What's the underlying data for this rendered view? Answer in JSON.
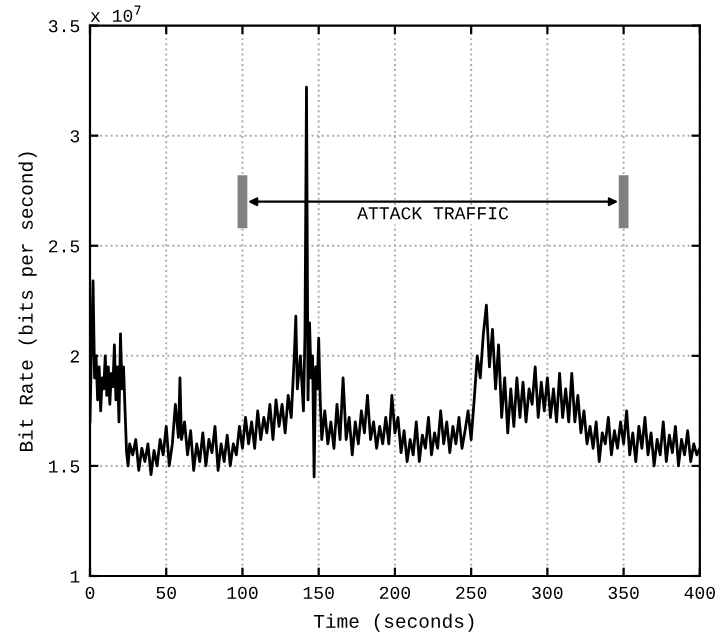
{
  "chart_data": {
    "type": "line",
    "xlabel": "Time (seconds)",
    "ylabel": "Bit Rate (bits per second)",
    "annotations": [
      "x 10$^{7}$",
      "ATTACK TRAFFIC"
    ],
    "ref_lines": [
      {
        "axis": "x",
        "value": 100,
        "color": "#808080"
      },
      {
        "axis": "x",
        "value": 350,
        "color": "#808080"
      }
    ],
    "x": [
      0,
      1,
      2,
      3,
      4,
      5,
      6,
      7,
      8,
      9,
      10,
      11,
      12,
      13,
      14,
      15,
      16,
      17,
      18,
      19,
      20,
      21,
      22,
      23,
      24,
      25,
      26,
      28,
      30,
      32,
      34,
      36,
      38,
      40,
      42,
      44,
      46,
      48,
      50,
      52,
      54,
      56,
      58,
      59,
      60,
      62,
      64,
      66,
      68,
      70,
      72,
      74,
      76,
      78,
      80,
      82,
      84,
      86,
      88,
      90,
      92,
      94,
      96,
      98,
      100,
      102,
      104,
      106,
      108,
      110,
      112,
      114,
      116,
      118,
      120,
      122,
      124,
      126,
      128,
      130,
      132,
      134,
      135,
      136,
      138,
      140,
      141,
      142,
      143,
      144,
      145,
      146,
      147,
      148,
      149,
      150,
      151,
      152,
      154,
      156,
      158,
      160,
      162,
      164,
      166,
      168,
      170,
      172,
      174,
      176,
      178,
      180,
      182,
      184,
      186,
      188,
      190,
      192,
      194,
      196,
      198,
      200,
      202,
      204,
      206,
      208,
      210,
      212,
      214,
      216,
      218,
      220,
      222,
      224,
      226,
      228,
      230,
      232,
      234,
      236,
      238,
      240,
      242,
      244,
      246,
      248,
      250,
      252,
      254,
      256,
      258,
      260,
      262,
      264,
      266,
      268,
      270,
      272,
      274,
      276,
      278,
      280,
      282,
      284,
      286,
      288,
      290,
      292,
      294,
      296,
      298,
      300,
      302,
      304,
      306,
      308,
      310,
      312,
      314,
      316,
      318,
      320,
      322,
      324,
      326,
      328,
      330,
      332,
      334,
      336,
      338,
      340,
      342,
      344,
      346,
      348,
      350,
      352,
      354,
      356,
      358,
      360,
      362,
      364,
      366,
      368,
      370,
      372,
      374,
      376,
      378,
      380,
      382,
      384,
      386,
      388,
      390,
      392,
      394,
      396,
      398,
      400
    ],
    "values": [
      1.7,
      2.05,
      2.34,
      1.9,
      2.0,
      1.8,
      1.95,
      1.75,
      1.9,
      1.85,
      2.0,
      1.82,
      1.95,
      1.78,
      1.92,
      1.86,
      2.05,
      1.8,
      1.95,
      1.7,
      2.1,
      1.85,
      1.95,
      1.75,
      1.56,
      1.5,
      1.6,
      1.55,
      1.62,
      1.48,
      1.58,
      1.52,
      1.6,
      1.46,
      1.57,
      1.5,
      1.62,
      1.55,
      1.68,
      1.5,
      1.6,
      1.78,
      1.63,
      1.9,
      1.62,
      1.7,
      1.55,
      1.66,
      1.48,
      1.6,
      1.52,
      1.65,
      1.5,
      1.62,
      1.56,
      1.68,
      1.48,
      1.6,
      1.52,
      1.64,
      1.5,
      1.6,
      1.55,
      1.68,
      1.58,
      1.72,
      1.6,
      1.7,
      1.58,
      1.75,
      1.62,
      1.72,
      1.65,
      1.78,
      1.62,
      1.8,
      1.68,
      1.78,
      1.65,
      1.82,
      1.72,
      2.0,
      2.18,
      1.85,
      2.0,
      1.75,
      2.1,
      3.22,
      1.8,
      2.15,
      1.9,
      2.0,
      1.45,
      1.95,
      1.85,
      2.08,
      1.8,
      1.62,
      1.75,
      1.6,
      1.7,
      1.58,
      1.78,
      1.62,
      1.9,
      1.62,
      1.72,
      1.55,
      1.7,
      1.6,
      1.75,
      1.65,
      1.82,
      1.62,
      1.7,
      1.58,
      1.68,
      1.6,
      1.72,
      1.6,
      1.82,
      1.65,
      1.72,
      1.56,
      1.66,
      1.52,
      1.62,
      1.55,
      1.7,
      1.52,
      1.64,
      1.58,
      1.72,
      1.55,
      1.65,
      1.58,
      1.75,
      1.6,
      1.7,
      1.56,
      1.68,
      1.6,
      1.72,
      1.58,
      1.66,
      1.75,
      1.62,
      1.8,
      2.0,
      1.9,
      2.1,
      2.23,
      1.95,
      2.12,
      1.85,
      2.05,
      1.72,
      1.9,
      1.65,
      1.85,
      1.68,
      1.9,
      1.72,
      1.88,
      1.7,
      1.85,
      1.78,
      1.95,
      1.72,
      1.88,
      1.75,
      1.9,
      1.72,
      1.85,
      1.7,
      1.92,
      1.72,
      1.85,
      1.7,
      1.92,
      1.7,
      1.82,
      1.65,
      1.75,
      1.6,
      1.68,
      1.58,
      1.7,
      1.52,
      1.65,
      1.6,
      1.72,
      1.55,
      1.66,
      1.58,
      1.7,
      1.6,
      1.75,
      1.55,
      1.65,
      1.52,
      1.68,
      1.58,
      1.72,
      1.55,
      1.65,
      1.5,
      1.62,
      1.55,
      1.7,
      1.52,
      1.64,
      1.56,
      1.68,
      1.5,
      1.62,
      1.55,
      1.66,
      1.52,
      1.6,
      1.55,
      1.58
    ],
    "color": "#000000",
    "line_style": "solid",
    "marker": "none",
    "xlim": [
      0,
      400
    ],
    "xticks": [
      0,
      50,
      100,
      150,
      200,
      250,
      300,
      350,
      400
    ],
    "ylim": [
      1,
      3.5
    ],
    "yticks": [
      1,
      1.5,
      2,
      2.5,
      3,
      3.5
    ],
    "grid": true,
    "legend": false
  }
}
